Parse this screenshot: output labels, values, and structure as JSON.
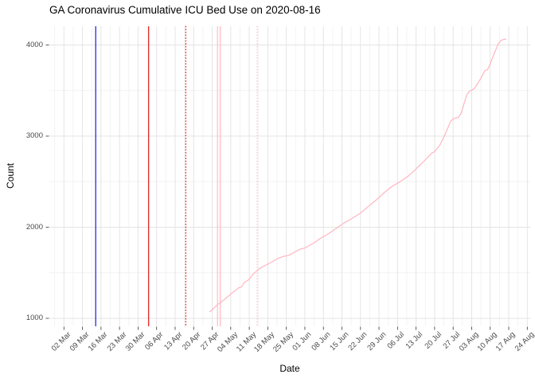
{
  "chart_data": {
    "type": "line",
    "title": "GA Coronavirus Cumulative ICU Bed Use on 2020-08-16",
    "xlabel": "Date",
    "ylabel": "Count",
    "grid": "major and minor, light gray on white",
    "legend": "none",
    "x_start_date": "2020-03-02",
    "x_tick_labels": [
      "02 Mar",
      "09 Mar",
      "16 Mar",
      "23 Mar",
      "30 Mar",
      "06 Apr",
      "13 Apr",
      "20 Apr",
      "27 Apr",
      "04 May",
      "11 May",
      "18 May",
      "25 May",
      "01 Jun",
      "08 Jun",
      "15 Jun",
      "22 Jun",
      "29 Jun",
      "06 Jul",
      "13 Jul",
      "20 Jul",
      "27 Jul",
      "03 Aug",
      "10 Aug",
      "17 Aug",
      "24 Aug"
    ],
    "y_tick_labels": [
      "1000",
      "2000",
      "3000",
      "4000"
    ],
    "y_minor_gridlines": [
      1500,
      2500,
      3500
    ],
    "y_major_gridlines": [
      1000,
      2000,
      3000,
      4000
    ],
    "ylim": [
      913,
      4200
    ],
    "series": [
      {
        "name": "cumulative-icu-bed-use",
        "color": "#ffb6c1",
        "points": [
          [
            "2020-04-26",
            1070
          ],
          [
            "2020-04-27",
            1095
          ],
          [
            "2020-04-29",
            1150
          ],
          [
            "2020-05-01",
            1192
          ],
          [
            "2020-05-03",
            1240
          ],
          [
            "2020-05-05",
            1290
          ],
          [
            "2020-05-07",
            1335
          ],
          [
            "2020-05-08",
            1342
          ],
          [
            "2020-05-09",
            1390
          ],
          [
            "2020-05-11",
            1428
          ],
          [
            "2020-05-12",
            1470
          ],
          [
            "2020-05-13",
            1500
          ],
          [
            "2020-05-14",
            1525
          ],
          [
            "2020-05-15",
            1548
          ],
          [
            "2020-05-16",
            1565
          ],
          [
            "2020-05-18",
            1595
          ],
          [
            "2020-05-20",
            1625
          ],
          [
            "2020-05-22",
            1660
          ],
          [
            "2020-05-24",
            1680
          ],
          [
            "2020-05-26",
            1692
          ],
          [
            "2020-05-28",
            1725
          ],
          [
            "2020-05-30",
            1757
          ],
          [
            "2020-06-01",
            1772
          ],
          [
            "2020-06-04",
            1820
          ],
          [
            "2020-06-07",
            1880
          ],
          [
            "2020-06-10",
            1930
          ],
          [
            "2020-06-13",
            1990
          ],
          [
            "2020-06-16",
            2050
          ],
          [
            "2020-06-19",
            2100
          ],
          [
            "2020-06-22",
            2155
          ],
          [
            "2020-06-25",
            2230
          ],
          [
            "2020-06-28",
            2300
          ],
          [
            "2020-07-01",
            2380
          ],
          [
            "2020-07-04",
            2450
          ],
          [
            "2020-07-07",
            2500
          ],
          [
            "2020-07-10",
            2560
          ],
          [
            "2020-07-13",
            2640
          ],
          [
            "2020-07-16",
            2725
          ],
          [
            "2020-07-19",
            2815
          ],
          [
            "2020-07-20",
            2830
          ],
          [
            "2020-07-22",
            2900
          ],
          [
            "2020-07-24",
            3020
          ],
          [
            "2020-07-25",
            3090
          ],
          [
            "2020-07-26",
            3160
          ],
          [
            "2020-07-27",
            3190
          ],
          [
            "2020-07-29",
            3205
          ],
          [
            "2020-07-30",
            3250
          ],
          [
            "2020-08-01",
            3440
          ],
          [
            "2020-08-02",
            3490
          ],
          [
            "2020-08-03",
            3505
          ],
          [
            "2020-08-04",
            3520
          ],
          [
            "2020-08-06",
            3610
          ],
          [
            "2020-08-08",
            3720
          ],
          [
            "2020-08-09",
            3728
          ],
          [
            "2020-08-10",
            3790
          ],
          [
            "2020-08-11",
            3870
          ],
          [
            "2020-08-12",
            3940
          ],
          [
            "2020-08-13",
            4010
          ],
          [
            "2020-08-14",
            4048
          ],
          [
            "2020-08-15",
            4060
          ],
          [
            "2020-08-16",
            4065
          ]
        ]
      }
    ],
    "vlines": [
      {
        "date": "2020-03-14",
        "color": "#0000e0",
        "style": "solid"
      },
      {
        "date": "2020-04-03",
        "color": "#e00000",
        "style": "solid"
      },
      {
        "date": "2020-04-17",
        "color": "#e00000",
        "style": "dotted"
      },
      {
        "date": "2020-04-29",
        "color": "#ffb6c1",
        "style": "solid"
      },
      {
        "date": "2020-04-30",
        "color": "#ffb6c1",
        "style": "solid"
      },
      {
        "date": "2020-05-14",
        "color": "#ffb6c1",
        "style": "dotted"
      }
    ],
    "colors": {
      "line_pink": "#ffb6c1",
      "vline_blue": "#0000e0",
      "vline_red": "#e00000",
      "grid_major": "#e4e4e4",
      "grid_minor": "#f2f2f2",
      "tick_text": "#4a4a4a",
      "tick_mark": "#333333",
      "background": "#ffffff"
    }
  }
}
